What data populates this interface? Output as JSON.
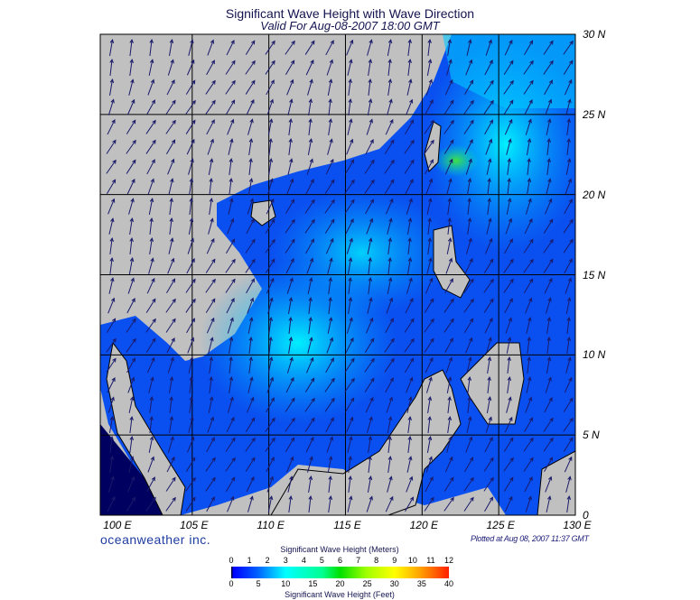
{
  "title": "Significant Wave Height with Wave Direction",
  "subtitle": "Valid For Aug-08-2007 18:00 GMT",
  "map": {
    "region": "South China Sea",
    "lon_range": [
      99,
      130
    ],
    "lat_range": [
      0,
      30
    ],
    "lon_labels": [
      "100 E",
      "105 E",
      "110 E",
      "115 E",
      "120 E",
      "125 E",
      "130 E"
    ],
    "lat_labels": [
      "30 N",
      "25 N",
      "20 N",
      "15 N",
      "10 N",
      "5 N",
      "0"
    ],
    "land_color": "#c0c0c0",
    "grid": true,
    "dominant_wave_direction": "southwesterly (arrows toward NE)"
  },
  "brand": "oceanweather inc.",
  "plotted": "Plotted at Aug 08, 2007 11:37 GMT",
  "colorbar": {
    "title_top": "Significant Wave Height (Meters)",
    "title_bottom": "Significant Wave Height (Feet)",
    "meters": [
      "0",
      "1",
      "2",
      "3",
      "4",
      "5",
      "6",
      "7",
      "8",
      "9",
      "10",
      "11",
      "12"
    ],
    "feet": [
      "0",
      "5",
      "10",
      "15",
      "20",
      "25",
      "30",
      "35",
      "40"
    ],
    "colors": [
      "#000000",
      "#0000ff",
      "#0060ff",
      "#00ffff",
      "#00e000",
      "#ffff00",
      "#ffa000",
      "#ff2000"
    ]
  }
}
